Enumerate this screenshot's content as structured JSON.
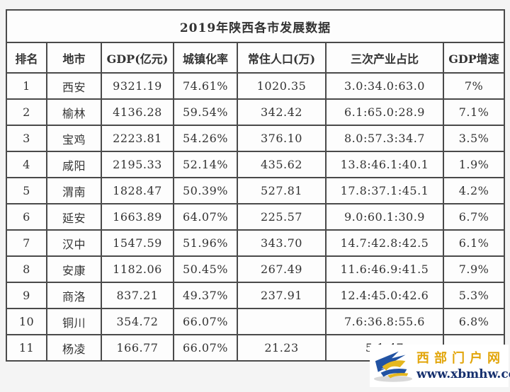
{
  "chart_data": {
    "type": "table",
    "title": "2019年陕西各市发展数据",
    "columns": [
      "排名",
      "地市",
      "GDP(亿元)",
      "城镇化率",
      "常住人口(万)",
      "三次产业占比",
      "GDP增速"
    ],
    "rows": [
      [
        "1",
        "西安",
        "9321.19",
        "74.61%",
        "1020.35",
        "3.0:34.0:63.0",
        "7%"
      ],
      [
        "2",
        "榆林",
        "4136.28",
        "59.54%",
        "342.42",
        "6.1:65.0:28.9",
        "7.1%"
      ],
      [
        "3",
        "宝鸡",
        "2223.81",
        "54.26%",
        "376.10",
        "8.0:57.3:34.7",
        "3.5%"
      ],
      [
        "4",
        "咸阳",
        "2195.33",
        "52.14%",
        "435.62",
        "13.8:46.1:40.1",
        "1.9%"
      ],
      [
        "5",
        "渭南",
        "1828.47",
        "50.39%",
        "527.81",
        "17.8:37.1:45.1",
        "4.2%"
      ],
      [
        "6",
        "延安",
        "1663.89",
        "64.07%",
        "225.57",
        "9.0:60.1:30.9",
        "6.7%"
      ],
      [
        "7",
        "汉中",
        "1547.59",
        "51.96%",
        "343.70",
        "14.7:42.8:42.5",
        "6.1%"
      ],
      [
        "8",
        "安康",
        "1182.06",
        "50.45%",
        "267.49",
        "11.6:46.9:41.5",
        "7.9%"
      ],
      [
        "9",
        "商洛",
        "837.21",
        "49.37%",
        "237.91",
        "12.4:45.0:42.6",
        "5.3%"
      ],
      [
        "10",
        "铜川",
        "354.72",
        "66.07%",
        "",
        "7.6:36.8:55.6",
        "6.8%"
      ],
      [
        "11",
        "杨凌",
        "166.77",
        "66.07%",
        "21.23",
        "5.1:47",
        ""
      ]
    ],
    "layout": {
      "grid": "on",
      "border_color": "#4a4a4a",
      "cell_background": "#fdfdfd",
      "text_color": "#333333"
    }
  },
  "watermark": {
    "site_name": "西部门户网",
    "site_url": "www.xbmhw.com",
    "name_color": "#e2a50a",
    "url_color": "#16306e",
    "logo_blue": "#2253a3",
    "logo_yellow": "#e5b71e",
    "logo_gray": "#d9d9d9"
  }
}
